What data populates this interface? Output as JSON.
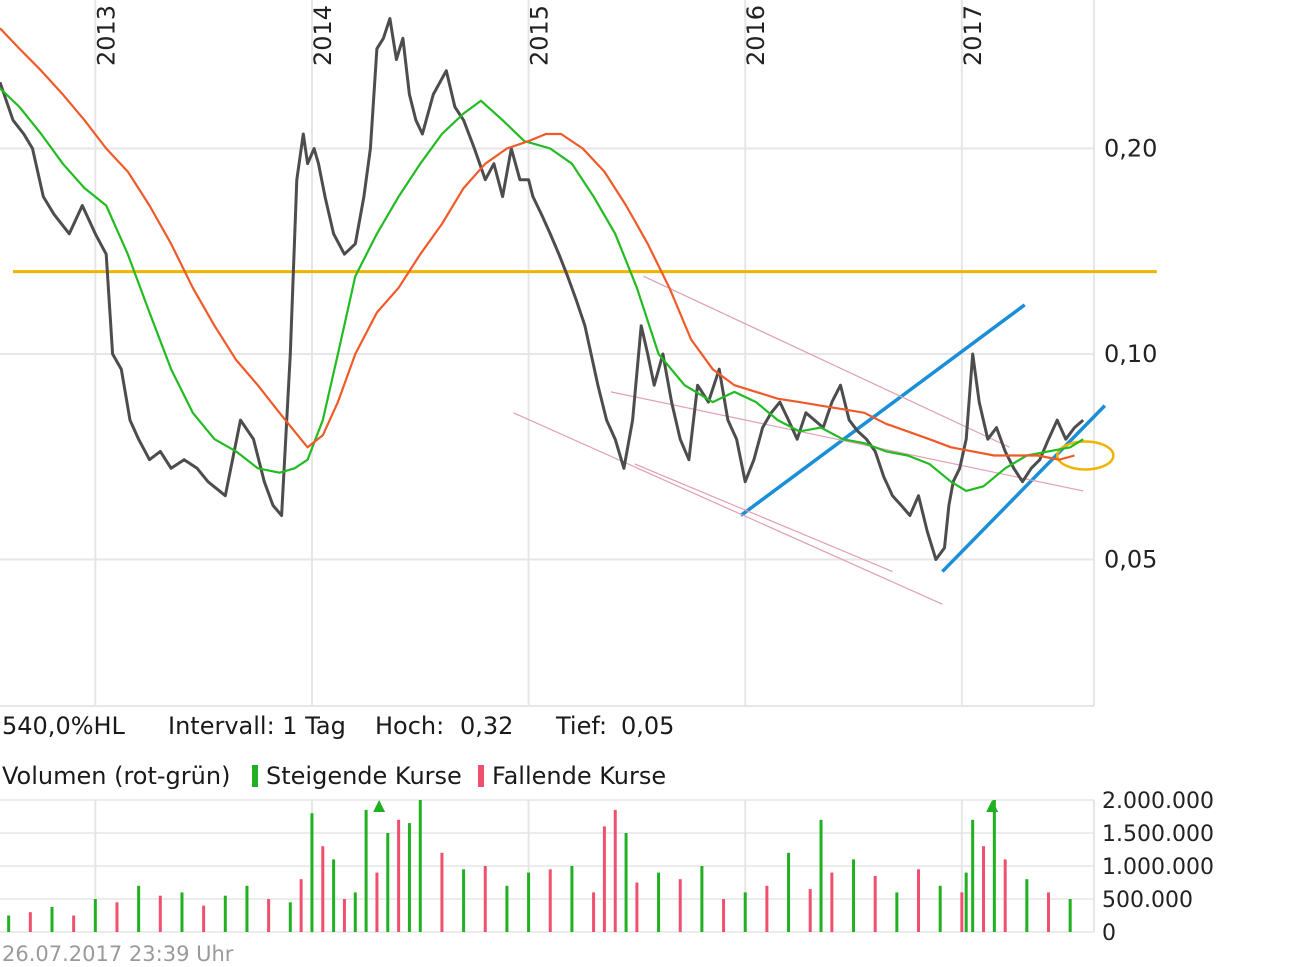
{
  "info_row": {
    "range_label": "540,0%HL",
    "interval_label": "Intervall: 1 Tag",
    "high_label": "Hoch:",
    "high_value": "0,32",
    "low_label": "Tief:",
    "low_value": "0,05"
  },
  "volume_legend": {
    "title": "Volumen (rot-grün)",
    "rising_label": "Steigende Kurse",
    "falling_label": "Fallende Kurse"
  },
  "timestamp": "26.07.2017 23:39 Uhr",
  "colors": {
    "price": "#4d4d4d",
    "ma_short": "#22bb22",
    "ma_long": "#f05a28",
    "horizontal_line": "#f0b400",
    "channel": "#1a8fd8",
    "wedge": "#e0a0b0",
    "vol_up": "#21b021",
    "vol_down": "#f0506e",
    "grid": "#e6e6e6"
  },
  "chart_data": [
    {
      "type": "line",
      "name": "price-chart",
      "scale": "log",
      "x_ticks": [
        "2013",
        "2014",
        "2015",
        "2016",
        "2017"
      ],
      "y_ticks": [
        {
          "value": 0.2,
          "label": "0,20"
        },
        {
          "value": 0.1,
          "label": "0,10"
        },
        {
          "value": 0.05,
          "label": "0,05"
        }
      ],
      "ylim": [
        0.0305,
        0.33
      ],
      "xlim": [
        2012.56,
        2017.61
      ],
      "grid": true,
      "series": [
        {
          "key": "price",
          "x": [
            2012.56,
            2012.62,
            2012.67,
            2012.71,
            2012.76,
            2012.81,
            2012.88,
            2012.94,
            2013.0,
            2013.05,
            2013.08,
            2013.12,
            2013.16,
            2013.2,
            2013.25,
            2013.3,
            2013.35,
            2013.41,
            2013.47,
            2013.52,
            2013.6,
            2013.67,
            2013.73,
            2013.78,
            2013.82,
            2013.86,
            2013.9,
            2013.93,
            2013.96,
            2013.98,
            2014.01,
            2014.03,
            2014.06,
            2014.1,
            2014.15,
            2014.2,
            2014.24,
            2014.27,
            2014.3,
            2014.33,
            2014.36,
            2014.39,
            2014.42,
            2014.45,
            2014.48,
            2014.51,
            2014.56,
            2014.62,
            2014.66,
            2014.7,
            2014.75,
            2014.8,
            2014.84,
            2014.88,
            2014.92,
            2014.96,
            2015.0,
            2015.02,
            2015.06,
            2015.1,
            2015.14,
            2015.18,
            2015.22,
            2015.26,
            2015.32,
            2015.36,
            2015.4,
            2015.44,
            2015.48,
            2015.52,
            2015.55,
            2015.58,
            2015.62,
            2015.66,
            2015.7,
            2015.74,
            2015.78,
            2015.83,
            2015.88,
            2015.92,
            2015.96,
            2016.0,
            2016.04,
            2016.08,
            2016.12,
            2016.16,
            2016.2,
            2016.24,
            2016.28,
            2016.32,
            2016.36,
            2016.4,
            2016.44,
            2016.48,
            2016.52,
            2016.56,
            2016.6,
            2016.64,
            2016.68,
            2016.72,
            2016.76,
            2016.8,
            2016.84,
            2016.88,
            2016.92,
            2016.94,
            2016.96,
            2016.99,
            2017.02,
            2017.05,
            2017.08,
            2017.12,
            2017.16,
            2017.2,
            2017.24,
            2017.28,
            2017.32,
            2017.36,
            2017.4,
            2017.44,
            2017.48,
            2017.52,
            2017.56
          ],
          "y": [
            0.25,
            0.22,
            0.21,
            0.2,
            0.17,
            0.16,
            0.15,
            0.165,
            0.15,
            0.14,
            0.1,
            0.095,
            0.08,
            0.075,
            0.07,
            0.072,
            0.068,
            0.07,
            0.068,
            0.065,
            0.062,
            0.08,
            0.075,
            0.065,
            0.06,
            0.058,
            0.1,
            0.18,
            0.21,
            0.19,
            0.2,
            0.19,
            0.17,
            0.15,
            0.14,
            0.145,
            0.17,
            0.2,
            0.28,
            0.29,
            0.31,
            0.27,
            0.29,
            0.24,
            0.22,
            0.21,
            0.24,
            0.26,
            0.23,
            0.22,
            0.2,
            0.18,
            0.19,
            0.17,
            0.2,
            0.18,
            0.18,
            0.17,
            0.16,
            0.15,
            0.14,
            0.13,
            0.12,
            0.11,
            0.09,
            0.08,
            0.075,
            0.068,
            0.08,
            0.11,
            0.1,
            0.09,
            0.1,
            0.085,
            0.075,
            0.07,
            0.09,
            0.085,
            0.095,
            0.08,
            0.075,
            0.065,
            0.07,
            0.078,
            0.082,
            0.085,
            0.08,
            0.075,
            0.082,
            0.08,
            0.078,
            0.085,
            0.09,
            0.08,
            0.077,
            0.075,
            0.072,
            0.066,
            0.062,
            0.06,
            0.058,
            0.062,
            0.055,
            0.05,
            0.052,
            0.06,
            0.065,
            0.068,
            0.075,
            0.1,
            0.085,
            0.075,
            0.078,
            0.072,
            0.068,
            0.065,
            0.068,
            0.07,
            0.075,
            0.08,
            0.075,
            0.078,
            0.08
          ]
        },
        {
          "key": "ma_short",
          "x": [
            2012.56,
            2012.65,
            2012.75,
            2012.85,
            2012.95,
            2013.05,
            2013.15,
            2013.25,
            2013.35,
            2013.45,
            2013.55,
            2013.65,
            2013.75,
            2013.85,
            2013.92,
            2013.98,
            2014.05,
            2014.12,
            2014.2,
            2014.3,
            2014.4,
            2014.5,
            2014.6,
            2014.7,
            2014.78,
            2014.88,
            2014.98,
            2015.1,
            2015.2,
            2015.3,
            2015.4,
            2015.5,
            2015.6,
            2015.72,
            2015.85,
            2015.95,
            2016.05,
            2016.15,
            2016.25,
            2016.35,
            2016.45,
            2016.55,
            2016.65,
            2016.75,
            2016.85,
            2016.95,
            2017.02,
            2017.1,
            2017.2,
            2017.3,
            2017.4,
            2017.5,
            2017.56
          ],
          "y": [
            0.245,
            0.23,
            0.21,
            0.19,
            0.175,
            0.165,
            0.14,
            0.115,
            0.095,
            0.082,
            0.075,
            0.072,
            0.068,
            0.067,
            0.068,
            0.07,
            0.08,
            0.1,
            0.13,
            0.15,
            0.17,
            0.19,
            0.21,
            0.225,
            0.235,
            0.22,
            0.205,
            0.2,
            0.19,
            0.17,
            0.15,
            0.125,
            0.1,
            0.09,
            0.085,
            0.088,
            0.085,
            0.08,
            0.077,
            0.078,
            0.075,
            0.074,
            0.072,
            0.071,
            0.069,
            0.065,
            0.063,
            0.064,
            0.068,
            0.071,
            0.072,
            0.073,
            0.075
          ]
        },
        {
          "key": "ma_long",
          "x": [
            2012.56,
            2012.65,
            2012.75,
            2012.85,
            2012.95,
            2013.05,
            2013.15,
            2013.25,
            2013.35,
            2013.45,
            2013.55,
            2013.65,
            2013.75,
            2013.85,
            2013.92,
            2013.98,
            2014.05,
            2014.12,
            2014.2,
            2014.3,
            2014.4,
            2014.5,
            2014.6,
            2014.7,
            2014.8,
            2014.9,
            2015.0,
            2015.08,
            2015.15,
            2015.25,
            2015.35,
            2015.45,
            2015.55,
            2015.65,
            2015.75,
            2015.85,
            2015.95,
            2016.05,
            2016.15,
            2016.25,
            2016.35,
            2016.45,
            2016.55,
            2016.65,
            2016.75,
            2016.85,
            2016.95,
            2017.05,
            2017.15,
            2017.25,
            2017.35,
            2017.45,
            2017.52
          ],
          "y": [
            0.3,
            0.28,
            0.26,
            0.24,
            0.22,
            0.2,
            0.185,
            0.165,
            0.145,
            0.125,
            0.11,
            0.098,
            0.09,
            0.082,
            0.077,
            0.073,
            0.076,
            0.085,
            0.1,
            0.115,
            0.125,
            0.14,
            0.155,
            0.175,
            0.19,
            0.2,
            0.205,
            0.21,
            0.21,
            0.2,
            0.185,
            0.165,
            0.145,
            0.125,
            0.105,
            0.095,
            0.09,
            0.088,
            0.086,
            0.085,
            0.084,
            0.083,
            0.082,
            0.079,
            0.077,
            0.075,
            0.073,
            0.072,
            0.071,
            0.071,
            0.071,
            0.07,
            0.071
          ]
        }
      ],
      "overlays": [
        {
          "key": "horizontal_line",
          "level": 0.132,
          "x": [
            2012.62,
            2017.9
          ]
        },
        {
          "key": "channel",
          "x": [
            2015.98,
            2017.29
          ],
          "y": [
            0.058,
            0.118
          ]
        },
        {
          "key": "channel",
          "x": [
            2016.91,
            2017.66
          ],
          "y": [
            0.048,
            0.084
          ]
        },
        {
          "key": "wedge",
          "x": [
            2015.53,
            2017.22
          ],
          "y": [
            0.13,
            0.073
          ]
        },
        {
          "key": "wedge",
          "x": [
            2015.38,
            2017.56
          ],
          "y": [
            0.088,
            0.063
          ]
        },
        {
          "key": "wedge",
          "x": [
            2014.93,
            2016.91
          ],
          "y": [
            0.082,
            0.043
          ]
        },
        {
          "key": "wedge",
          "x": [
            2015.49,
            2016.68
          ],
          "y": [
            0.069,
            0.048
          ]
        },
        {
          "key": "marker",
          "shape": "ellipse",
          "x": 2017.57,
          "y": 0.071
        }
      ]
    },
    {
      "type": "bar",
      "name": "volume-chart",
      "y_ticks": [
        {
          "value": 2000000,
          "label": "2.000.000"
        },
        {
          "value": 1500000,
          "label": "1.500.000"
        },
        {
          "value": 1000000,
          "label": "1.000.000"
        },
        {
          "value": 500000,
          "label": "500.000"
        },
        {
          "value": 0,
          "label": "0"
        }
      ],
      "ylim": [
        0,
        2000000
      ],
      "x": [
        2012.6,
        2012.7,
        2012.8,
        2012.9,
        2013.0,
        2013.1,
        2013.2,
        2013.3,
        2013.4,
        2013.5,
        2013.6,
        2013.7,
        2013.8,
        2013.9,
        2013.95,
        2014.0,
        2014.05,
        2014.1,
        2014.15,
        2014.2,
        2014.25,
        2014.3,
        2014.35,
        2014.4,
        2014.45,
        2014.5,
        2014.6,
        2014.7,
        2014.8,
        2014.9,
        2015.0,
        2015.1,
        2015.2,
        2015.3,
        2015.35,
        2015.4,
        2015.45,
        2015.5,
        2015.6,
        2015.7,
        2015.8,
        2015.9,
        2016.0,
        2016.1,
        2016.2,
        2016.3,
        2016.35,
        2016.4,
        2016.5,
        2016.6,
        2016.7,
        2016.8,
        2016.9,
        2017.0,
        2017.02,
        2017.05,
        2017.1,
        2017.15,
        2017.2,
        2017.3,
        2017.4,
        2017.5
      ],
      "values": [
        250000,
        300000,
        380000,
        250000,
        500000,
        450000,
        700000,
        550000,
        600000,
        400000,
        550000,
        700000,
        500000,
        450000,
        800000,
        1800000,
        1300000,
        1100000,
        500000,
        600000,
        1850000,
        900000,
        1500000,
        1700000,
        1650000,
        2000000,
        1200000,
        950000,
        1000000,
        700000,
        900000,
        950000,
        1000000,
        600000,
        1600000,
        1850000,
        1500000,
        750000,
        900000,
        800000,
        1000000,
        500000,
        600000,
        700000,
        1200000,
        650000,
        1700000,
        900000,
        1100000,
        850000,
        600000,
        950000,
        700000,
        600000,
        900000,
        1700000,
        1300000,
        2000000,
        1100000,
        800000,
        600000,
        500000
      ],
      "direction": [
        "up",
        "down",
        "up",
        "down",
        "up",
        "down",
        "up",
        "down",
        "up",
        "down",
        "up",
        "up",
        "down",
        "up",
        "down",
        "up",
        "down",
        "up",
        "down",
        "up",
        "up",
        "down",
        "up",
        "down",
        "up",
        "up",
        "down",
        "up",
        "down",
        "up",
        "up",
        "down",
        "up",
        "down",
        "down",
        "down",
        "up",
        "down",
        "up",
        "down",
        "up",
        "down",
        "up",
        "down",
        "up",
        "down",
        "up",
        "down",
        "up",
        "down",
        "up",
        "down",
        "up",
        "down",
        "up",
        "up",
        "down",
        "up",
        "down",
        "up",
        "down",
        "up"
      ],
      "arrows_at": [
        2014.31,
        2017.14
      ]
    }
  ]
}
